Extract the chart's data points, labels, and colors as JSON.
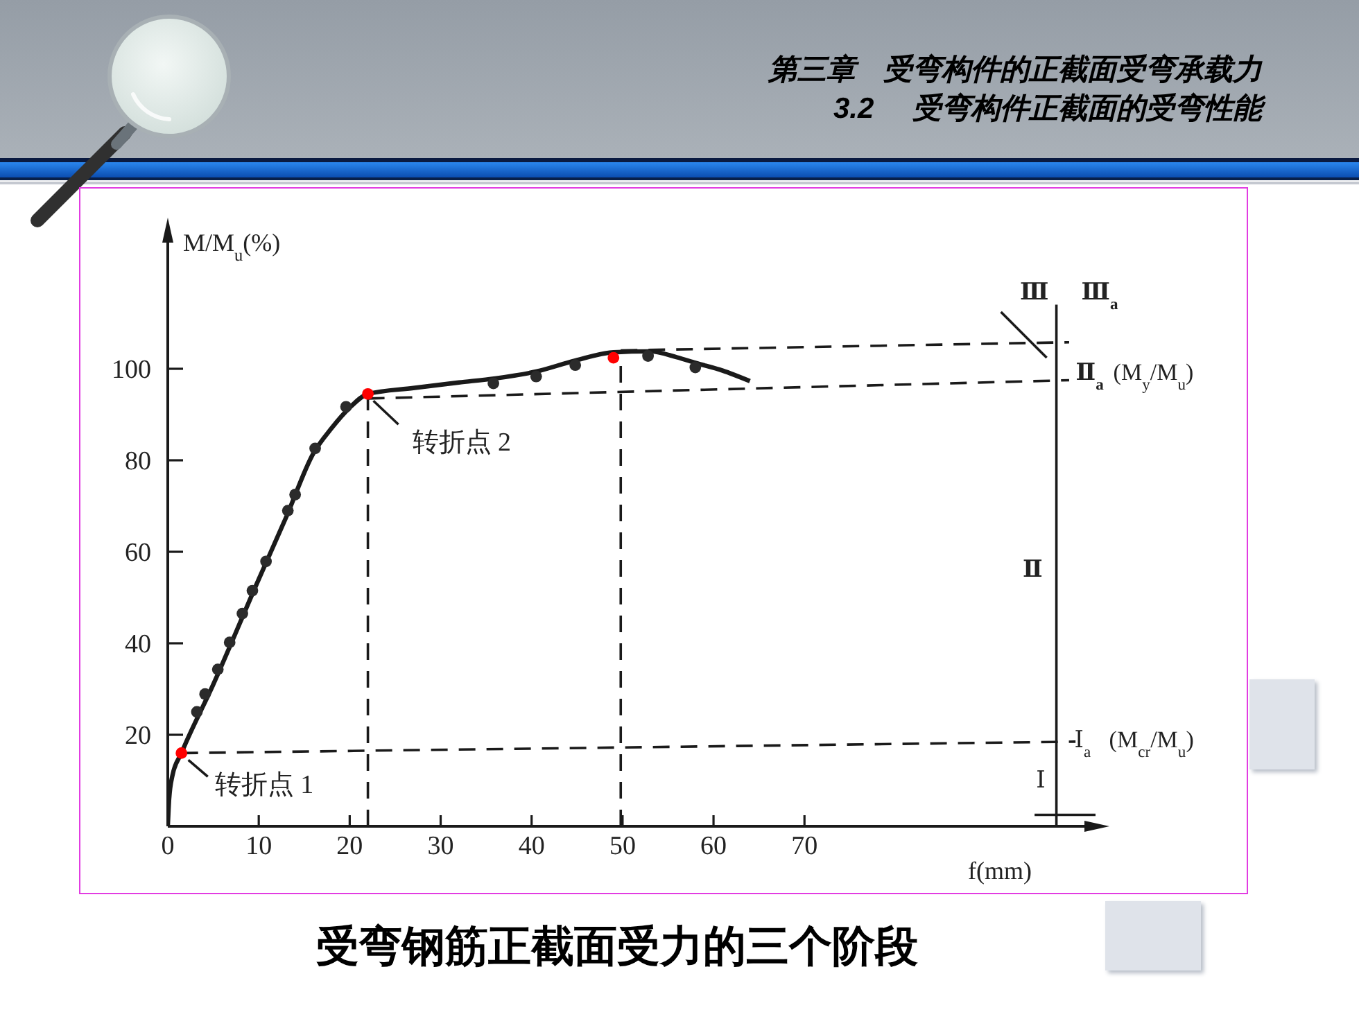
{
  "chart_data": {
    "type": "line",
    "title": "第三章 受弯构件的正截面受弯承载力",
    "subtitle": "3.2 受弯构件正截面的受弯性能",
    "xlabel": "f(mm)",
    "ylabel": "M/M$_{u}$(%)",
    "xlim": [
      0,
      102
    ],
    "xticks": [
      0,
      10,
      20,
      30,
      40,
      50,
      60,
      70
    ],
    "ylim": [
      0,
      130
    ],
    "yticks": [
      20,
      40,
      60,
      80,
      100
    ],
    "series": [
      {
        "type": "line",
        "color": "#1a1a1a",
        "line_style": "dashed",
        "marker": "none",
        "x": [
          1.5,
          99.8
        ],
        "values": [
          16,
          18.5
        ]
      },
      {
        "type": "line",
        "color": "#1a1a1a",
        "line_style": "dashed",
        "marker": "none",
        "x": [
          22,
          99.1
        ],
        "values": [
          93.5,
          97.5
        ]
      },
      {
        "type": "line",
        "color": "#1a1a1a",
        "line_style": "dashed",
        "marker": "none",
        "x": [
          49.8,
          99.1
        ],
        "values": [
          104,
          105.8
        ]
      },
      {
        "type": "line",
        "color": "#1a1a1a",
        "line_style": "dashed",
        "marker": "none",
        "x": [
          22,
          22
        ],
        "values": [
          0,
          94.5
        ]
      },
      {
        "type": "line",
        "color": "#1a1a1a",
        "line_style": "dashed",
        "marker": "none",
        "x": [
          49.8,
          49.8
        ],
        "values": [
          0,
          102.6
        ]
      },
      {
        "type": "line",
        "color": "#1a1a1a",
        "line_style": "solid",
        "marker": "none",
        "x": [
          97.7,
          97.7
        ],
        "values": [
          0,
          114
        ]
      },
      {
        "type": "line",
        "color": "#1a1a1a",
        "line_style": "solid",
        "marker": "none",
        "x": [
          95.3,
          102
        ],
        "values": [
          2.5,
          2.5
        ]
      },
      {
        "type": "line",
        "color": "#1a1a1a",
        "line_style": "solid",
        "marker": "none",
        "x": [
          0,
          0.15,
          0.5,
          1.5,
          5,
          10,
          13,
          16,
          18,
          20,
          22,
          27,
          32,
          36,
          40.5,
          44.8,
          49,
          53,
          56,
          58,
          61,
          64
        ],
        "values": [
          0,
          6,
          11,
          16,
          31,
          54,
          67.5,
          81.5,
          87,
          91.5,
          94.5,
          95.8,
          97,
          97.9,
          99.4,
          101.8,
          103.6,
          103.8,
          102.5,
          101.3,
          99.6,
          97.3
        ]
      },
      {
        "type": "scatter",
        "color": "#2b2b2b",
        "marker": "circle",
        "x": [
          3.2,
          4.1,
          5.5,
          6.8,
          8.2,
          9.3,
          10.8,
          13.2,
          14,
          16.2,
          19.6,
          35.8,
          40.5,
          44.8,
          52.8,
          58
        ],
        "values": [
          25,
          28.9,
          34.3,
          40.2,
          46.5,
          51.5,
          57.9,
          69,
          72.5,
          82.6,
          91.7,
          96.8,
          98.3,
          100.8,
          102.8,
          100.3
        ]
      },
      {
        "type": "scatter",
        "color": "#ff0000",
        "marker": "circle",
        "x": [
          1.5,
          22,
          49
        ],
        "values": [
          16,
          94.5,
          102.4
        ]
      }
    ],
    "annotations": [
      {
        "text": "转折点 1",
        "x": 1.5,
        "y": 16
      },
      {
        "text": "转折点 2",
        "x": 22,
        "y": 94.5
      },
      {
        "text": "Ⅲ$_{a}$",
        "x": 97.7,
        "y": 105.8
      },
      {
        "text": "Ⅲ",
        "x": 97.7,
        "y": 101.5
      },
      {
        "text": "Ⅱ$_{a}$",
        "x": 97.7,
        "y": 97.5
      },
      {
        "text": "(M$_{y}$/M$_{u}$)",
        "x": 97.7,
        "y": 97.5
      },
      {
        "text": "Ⅱ",
        "x": 97.7,
        "y": 57
      },
      {
        "text": "Ⅰ$_{a}$",
        "x": 97.7,
        "y": 18.5
      },
      {
        "text": "(M$_{cr}$/M$_{u}$)",
        "x": 97.7,
        "y": 18.5
      },
      {
        "text": "Ⅰ",
        "x": 97.7,
        "y": 10
      },
      "受弯钢筋正截面受力的三个阶段"
    ]
  }
}
